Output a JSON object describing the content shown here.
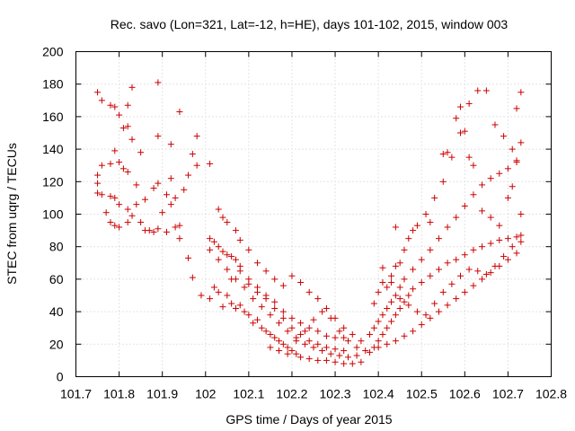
{
  "chart_data": {
    "type": "scatter",
    "title": "Rec. savo (Lon=321, Lat=-12, h=HE), days 101-102, 2015, window 003",
    "xlabel": "GPS time / Days of year 2015",
    "ylabel": "STEC from uqrg / TECUs",
    "xlim": [
      101.7,
      102.8
    ],
    "ylim": [
      0,
      200
    ],
    "xticks": [
      "101.7",
      "101.8",
      "101.9",
      "102",
      "102.1",
      "102.2",
      "102.3",
      "102.4",
      "102.5",
      "102.6",
      "102.7",
      "102.8"
    ],
    "yticks": [
      "0",
      "20",
      "40",
      "60",
      "80",
      "100",
      "120",
      "140",
      "160",
      "180",
      "200"
    ],
    "grid": true,
    "marker": "+",
    "color": "#cc0000",
    "points": [
      [
        101.75,
        175
      ],
      [
        101.76,
        170
      ],
      [
        101.78,
        167
      ],
      [
        101.79,
        166
      ],
      [
        101.8,
        161
      ],
      [
        101.81,
        153
      ],
      [
        101.82,
        154
      ],
      [
        101.83,
        178
      ],
      [
        101.82,
        167
      ],
      [
        101.85,
        138
      ],
      [
        101.83,
        146
      ],
      [
        101.89,
        181
      ],
      [
        101.94,
        163
      ],
      [
        101.98,
        148
      ],
      [
        101.92,
        143
      ],
      [
        101.89,
        148
      ],
      [
        101.75,
        124
      ],
      [
        101.75,
        119
      ],
      [
        101.76,
        130
      ],
      [
        101.78,
        131
      ],
      [
        101.79,
        139
      ],
      [
        101.8,
        132
      ],
      [
        101.81,
        128
      ],
      [
        101.82,
        126
      ],
      [
        101.84,
        118
      ],
      [
        101.86,
        109
      ],
      [
        101.88,
        116
      ],
      [
        101.89,
        119
      ],
      [
        101.91,
        112
      ],
      [
        101.92,
        122
      ],
      [
        101.93,
        110
      ],
      [
        101.95,
        115
      ],
      [
        101.96,
        124
      ],
      [
        101.97,
        137
      ],
      [
        101.98,
        130
      ],
      [
        102.01,
        131
      ],
      [
        101.75,
        113
      ],
      [
        101.76,
        112
      ],
      [
        101.78,
        111
      ],
      [
        101.79,
        110
      ],
      [
        101.8,
        106
      ],
      [
        101.82,
        103
      ],
      [
        101.83,
        99
      ],
      [
        101.85,
        95
      ],
      [
        101.87,
        90
      ],
      [
        101.89,
        91
      ],
      [
        101.9,
        101
      ],
      [
        101.92,
        106
      ],
      [
        101.93,
        92
      ],
      [
        101.94,
        93
      ],
      [
        101.96,
        73
      ],
      [
        101.97,
        61
      ],
      [
        101.99,
        50
      ],
      [
        101.77,
        101
      ],
      [
        101.78,
        95
      ],
      [
        101.79,
        93
      ],
      [
        101.8,
        92
      ],
      [
        101.82,
        95
      ],
      [
        101.84,
        106
      ],
      [
        101.86,
        90
      ],
      [
        101.88,
        89
      ],
      [
        101.91,
        89
      ],
      [
        101.94,
        85
      ],
      [
        102.01,
        85
      ],
      [
        102.02,
        83
      ],
      [
        102.03,
        80
      ],
      [
        102.04,
        77
      ],
      [
        102.05,
        75
      ],
      [
        102.06,
        74
      ],
      [
        102.07,
        72
      ],
      [
        102.08,
        68
      ],
      [
        102.1,
        60
      ],
      [
        102.12,
        55
      ],
      [
        102.14,
        50
      ],
      [
        102.16,
        46
      ],
      [
        102.18,
        40
      ],
      [
        102.2,
        36
      ],
      [
        102.22,
        33
      ],
      [
        102.24,
        30
      ],
      [
        102.26,
        28
      ],
      [
        102.28,
        25
      ],
      [
        102.3,
        24
      ],
      [
        102.32,
        24
      ],
      [
        102.01,
        78
      ],
      [
        102.03,
        72
      ],
      [
        102.05,
        66
      ],
      [
        102.07,
        60
      ],
      [
        102.09,
        55
      ],
      [
        102.11,
        48
      ],
      [
        102.13,
        43
      ],
      [
        102.15,
        38
      ],
      [
        102.17,
        33
      ],
      [
        102.19,
        28
      ],
      [
        102.21,
        24
      ],
      [
        102.23,
        20
      ],
      [
        102.25,
        18
      ],
      [
        102.27,
        16
      ],
      [
        102.29,
        14
      ],
      [
        102.31,
        13
      ],
      [
        102.33,
        12
      ],
      [
        102.35,
        13
      ],
      [
        102.01,
        48
      ],
      [
        102.02,
        55
      ],
      [
        102.03,
        52
      ],
      [
        102.04,
        43
      ],
      [
        102.05,
        50
      ],
      [
        102.06,
        45
      ],
      [
        102.07,
        42
      ],
      [
        102.08,
        44
      ],
      [
        102.09,
        40
      ],
      [
        102.1,
        38
      ],
      [
        102.11,
        33
      ],
      [
        102.12,
        35
      ],
      [
        102.13,
        30
      ],
      [
        102.14,
        28
      ],
      [
        102.15,
        26
      ],
      [
        102.16,
        24
      ],
      [
        102.17,
        22
      ],
      [
        102.18,
        20
      ],
      [
        102.19,
        18
      ],
      [
        102.2,
        16
      ],
      [
        102.21,
        14
      ],
      [
        102.22,
        12
      ],
      [
        102.24,
        11
      ],
      [
        102.26,
        10
      ],
      [
        102.28,
        10
      ],
      [
        102.3,
        9
      ],
      [
        102.32,
        8
      ],
      [
        102.34,
        8
      ],
      [
        102.36,
        9
      ],
      [
        102.03,
        103
      ],
      [
        102.04,
        98
      ],
      [
        102.05,
        95
      ],
      [
        102.07,
        90
      ],
      [
        102.08,
        84
      ],
      [
        102.1,
        78
      ],
      [
        102.12,
        70
      ],
      [
        102.14,
        65
      ],
      [
        102.16,
        60
      ],
      [
        102.18,
        56
      ],
      [
        102.2,
        62
      ],
      [
        102.22,
        58
      ],
      [
        102.24,
        52
      ],
      [
        102.26,
        48
      ],
      [
        102.28,
        42
      ],
      [
        102.3,
        36
      ],
      [
        102.32,
        30
      ],
      [
        102.34,
        26
      ],
      [
        102.36,
        22
      ],
      [
        102.06,
        60
      ],
      [
        102.08,
        65
      ],
      [
        102.1,
        57
      ],
      [
        102.12,
        52
      ],
      [
        102.14,
        48
      ],
      [
        102.16,
        42
      ],
      [
        102.18,
        36
      ],
      [
        102.2,
        30
      ],
      [
        102.22,
        26
      ],
      [
        102.24,
        22
      ],
      [
        102.26,
        20
      ],
      [
        102.28,
        18
      ],
      [
        102.3,
        17
      ],
      [
        102.32,
        16
      ],
      [
        102.15,
        18
      ],
      [
        102.17,
        16
      ],
      [
        102.19,
        14
      ],
      [
        102.21,
        22
      ],
      [
        102.23,
        28
      ],
      [
        102.25,
        35
      ],
      [
        102.27,
        40
      ],
      [
        102.29,
        36
      ],
      [
        102.31,
        28
      ],
      [
        102.33,
        22
      ],
      [
        102.35,
        18
      ],
      [
        102.37,
        16
      ],
      [
        102.38,
        15
      ],
      [
        102.39,
        18
      ],
      [
        102.4,
        22
      ],
      [
        102.41,
        26
      ],
      [
        102.42,
        30
      ],
      [
        102.43,
        34
      ],
      [
        102.44,
        38
      ],
      [
        102.45,
        42
      ],
      [
        102.46,
        46
      ],
      [
        102.47,
        50
      ],
      [
        102.48,
        54
      ],
      [
        102.5,
        58
      ],
      [
        102.52,
        62
      ],
      [
        102.54,
        66
      ],
      [
        102.56,
        70
      ],
      [
        102.58,
        72
      ],
      [
        102.6,
        75
      ],
      [
        102.62,
        78
      ],
      [
        102.64,
        80
      ],
      [
        102.66,
        82
      ],
      [
        102.68,
        84
      ],
      [
        102.7,
        85
      ],
      [
        102.72,
        86
      ],
      [
        102.73,
        87
      ],
      [
        102.38,
        26
      ],
      [
        102.39,
        30
      ],
      [
        102.4,
        34
      ],
      [
        102.41,
        38
      ],
      [
        102.42,
        42
      ],
      [
        102.43,
        46
      ],
      [
        102.44,
        50
      ],
      [
        102.45,
        55
      ],
      [
        102.46,
        60
      ],
      [
        102.48,
        66
      ],
      [
        102.5,
        72
      ],
      [
        102.52,
        78
      ],
      [
        102.54,
        85
      ],
      [
        102.56,
        92
      ],
      [
        102.58,
        98
      ],
      [
        102.6,
        105
      ],
      [
        102.62,
        112
      ],
      [
        102.64,
        118
      ],
      [
        102.66,
        122
      ],
      [
        102.68,
        125
      ],
      [
        102.7,
        128
      ],
      [
        102.72,
        132
      ],
      [
        102.73,
        100
      ],
      [
        102.39,
        45
      ],
      [
        102.4,
        52
      ],
      [
        102.41,
        58
      ],
      [
        102.42,
        55
      ],
      [
        102.43,
        62
      ],
      [
        102.44,
        68
      ],
      [
        102.45,
        70
      ],
      [
        102.46,
        78
      ],
      [
        102.47,
        85
      ],
      [
        102.48,
        90
      ],
      [
        102.49,
        93
      ],
      [
        102.51,
        100
      ],
      [
        102.53,
        110
      ],
      [
        102.55,
        120
      ],
      [
        102.57,
        135
      ],
      [
        102.59,
        150
      ],
      [
        102.61,
        168
      ],
      [
        102.63,
        176
      ],
      [
        102.65,
        176
      ],
      [
        102.67,
        155
      ],
      [
        102.69,
        148
      ],
      [
        102.71,
        140
      ],
      [
        102.72,
        165
      ],
      [
        102.73,
        175
      ],
      [
        102.4,
        18
      ],
      [
        102.42,
        20
      ],
      [
        102.44,
        22
      ],
      [
        102.46,
        25
      ],
      [
        102.48,
        28
      ],
      [
        102.5,
        32
      ],
      [
        102.52,
        36
      ],
      [
        102.54,
        40
      ],
      [
        102.56,
        44
      ],
      [
        102.58,
        48
      ],
      [
        102.6,
        52
      ],
      [
        102.62,
        56
      ],
      [
        102.64,
        60
      ],
      [
        102.66,
        64
      ],
      [
        102.68,
        68
      ],
      [
        102.7,
        72
      ],
      [
        102.72,
        76
      ],
      [
        102.41,
        67
      ],
      [
        102.43,
        58
      ],
      [
        102.45,
        48
      ],
      [
        102.47,
        44
      ],
      [
        102.49,
        40
      ],
      [
        102.51,
        38
      ],
      [
        102.53,
        45
      ],
      [
        102.55,
        52
      ],
      [
        102.57,
        57
      ],
      [
        102.59,
        62
      ],
      [
        102.61,
        66
      ],
      [
        102.63,
        65
      ],
      [
        102.65,
        63
      ],
      [
        102.67,
        68
      ],
      [
        102.69,
        74
      ],
      [
        102.71,
        80
      ],
      [
        102.73,
        83
      ],
      [
        102.44,
        92
      ],
      [
        102.52,
        95
      ],
      [
        102.55,
        137
      ],
      [
        102.56,
        138
      ],
      [
        102.58,
        159
      ],
      [
        102.59,
        166
      ],
      [
        102.6,
        151
      ],
      [
        102.61,
        135
      ],
      [
        102.62,
        130
      ],
      [
        102.64,
        102
      ],
      [
        102.66,
        98
      ],
      [
        102.68,
        93
      ],
      [
        102.7,
        110
      ],
      [
        102.71,
        117
      ],
      [
        102.72,
        133
      ],
      [
        102.73,
        144
      ]
    ]
  }
}
